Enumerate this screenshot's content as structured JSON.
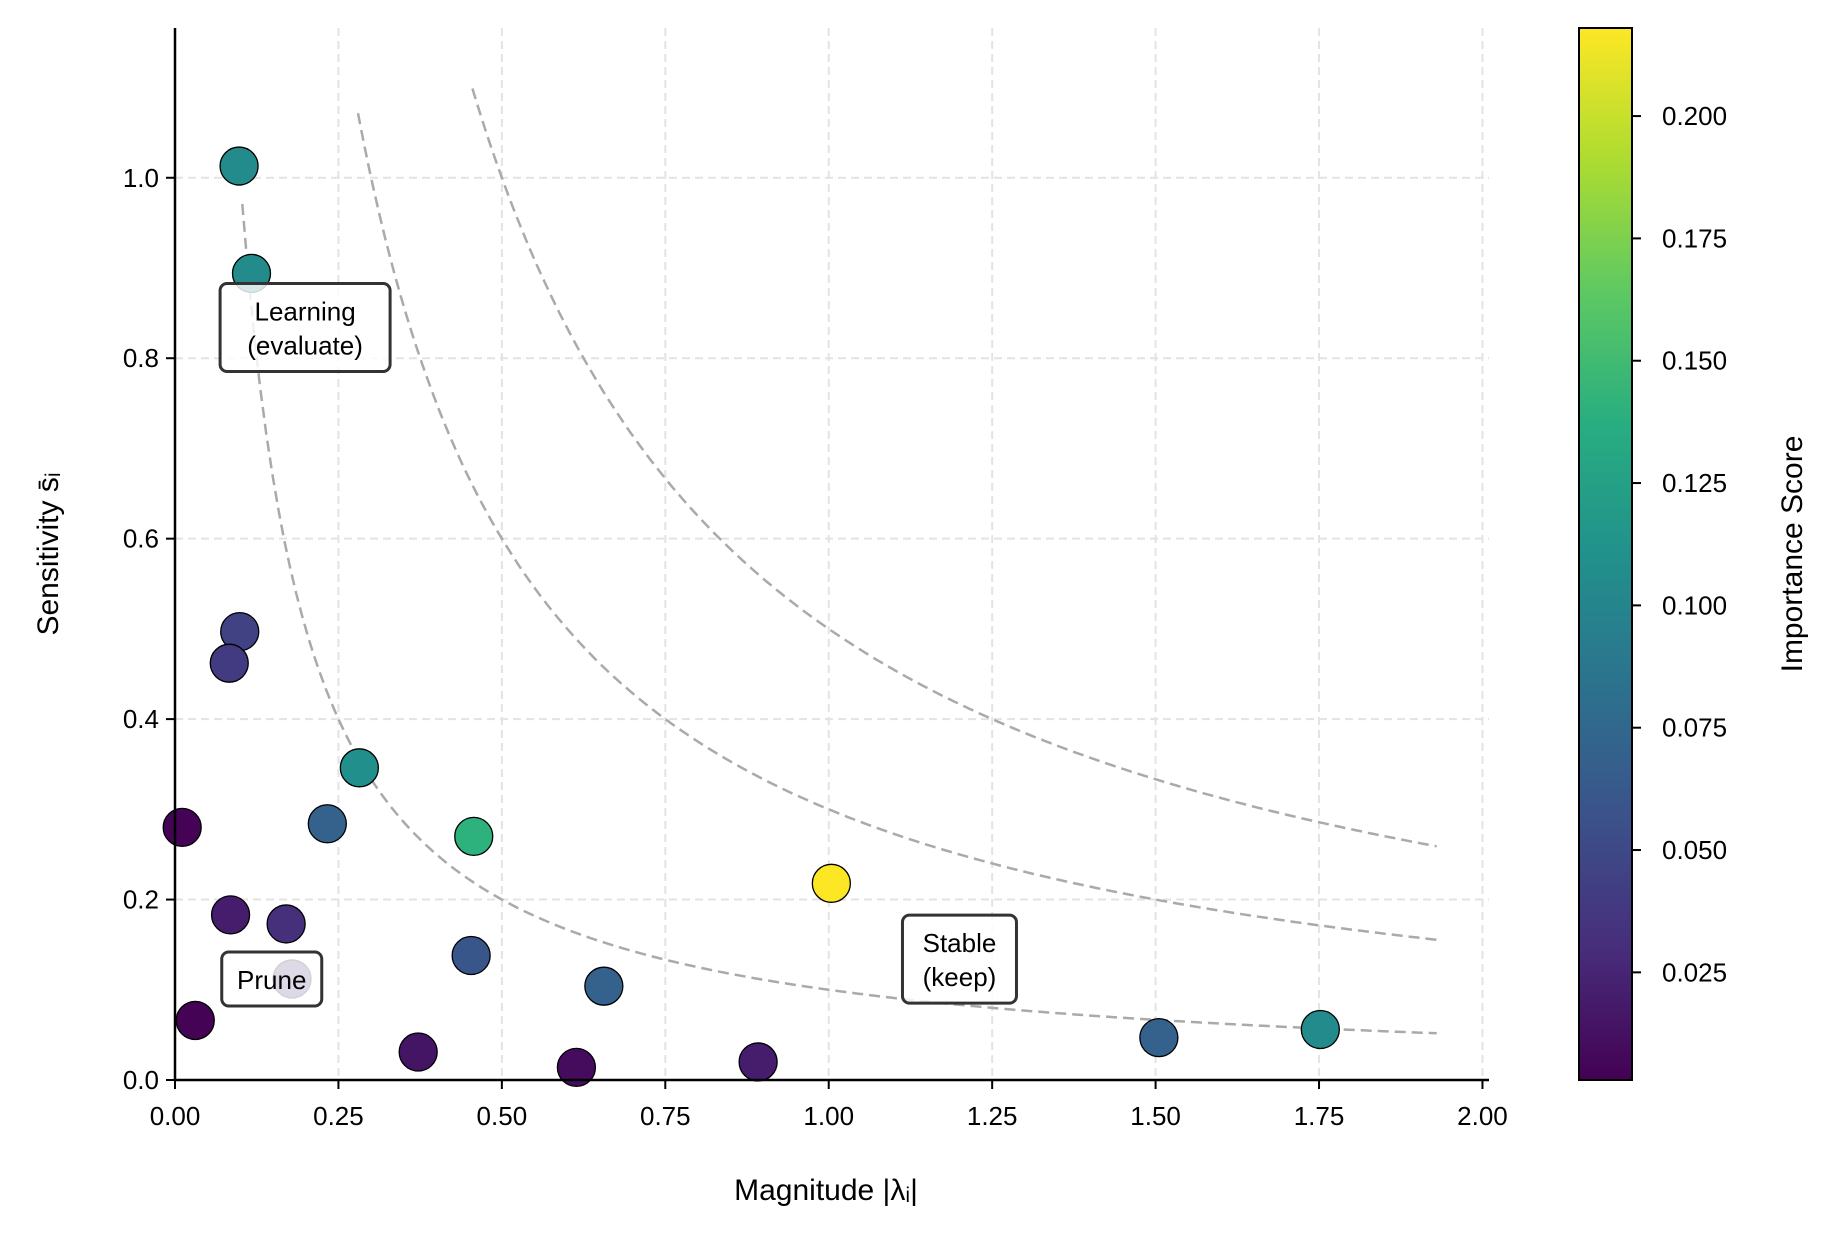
{
  "chart_data": {
    "type": "scatter",
    "xlabel": "Magnitude |λᵢ|",
    "ylabel": "Sensitivity s̄ᵢ",
    "xlim": [
      0,
      2.01
    ],
    "ylim": [
      0,
      1.166
    ],
    "grid": true,
    "xticks": [
      "0.00",
      "0.25",
      "0.50",
      "0.75",
      "1.00",
      "1.25",
      "1.50",
      "1.75",
      "2.00"
    ],
    "yticks": [
      "0.0",
      "0.2",
      "0.4",
      "0.6",
      "0.8",
      "1.0"
    ],
    "colorbar": {
      "label": "Importance Score",
      "colormap": "viridis",
      "range": [
        0.003,
        0.218
      ],
      "ticks": [
        "0.025",
        "0.050",
        "0.075",
        "0.100",
        "0.125",
        "0.150",
        "0.175",
        "0.200"
      ]
    },
    "points": [
      {
        "x": 0.098,
        "y": 1.013,
        "c": 0.105
      },
      {
        "x": 0.117,
        "y": 0.894,
        "c": 0.105
      },
      {
        "x": 0.099,
        "y": 0.497,
        "c": 0.045
      },
      {
        "x": 0.083,
        "y": 0.462,
        "c": 0.04
      },
      {
        "x": 0.282,
        "y": 0.346,
        "c": 0.11
      },
      {
        "x": 0.011,
        "y": 0.28,
        "c": 0.004
      },
      {
        "x": 0.233,
        "y": 0.284,
        "c": 0.07
      },
      {
        "x": 0.457,
        "y": 0.27,
        "c": 0.14
      },
      {
        "x": 1.004,
        "y": 0.218,
        "c": 0.218
      },
      {
        "x": 0.085,
        "y": 0.183,
        "c": 0.02
      },
      {
        "x": 0.17,
        "y": 0.173,
        "c": 0.032
      },
      {
        "x": 0.453,
        "y": 0.138,
        "c": 0.06
      },
      {
        "x": 0.179,
        "y": 0.112,
        "c": 0.03
      },
      {
        "x": 0.656,
        "y": 0.104,
        "c": 0.07
      },
      {
        "x": 0.031,
        "y": 0.066,
        "c": 0.004
      },
      {
        "x": 0.372,
        "y": 0.031,
        "c": 0.015
      },
      {
        "x": 0.614,
        "y": 0.014,
        "c": 0.01
      },
      {
        "x": 0.892,
        "y": 0.02,
        "c": 0.02
      },
      {
        "x": 1.505,
        "y": 0.047,
        "c": 0.07
      },
      {
        "x": 1.752,
        "y": 0.056,
        "c": 0.105
      }
    ],
    "contours": [
      {
        "product": 0.1,
        "x_range": [
          0.103,
          1.93
        ]
      },
      {
        "product": 0.3,
        "x_range": [
          0.28,
          1.93
        ]
      },
      {
        "product": 0.5,
        "x_range": [
          0.455,
          1.93
        ]
      }
    ],
    "contour_color": "#aaaaaa",
    "annotations": [
      {
        "lines": [
          "Learning",
          "(evaluate)"
        ],
        "x": 0.199,
        "y": 0.834
      },
      {
        "lines": [
          "Prune"
        ],
        "x": 0.148,
        "y": 0.112
      },
      {
        "lines": [
          "Stable",
          "(keep)"
        ],
        "x": 1.2,
        "y": 0.134
      }
    ]
  }
}
